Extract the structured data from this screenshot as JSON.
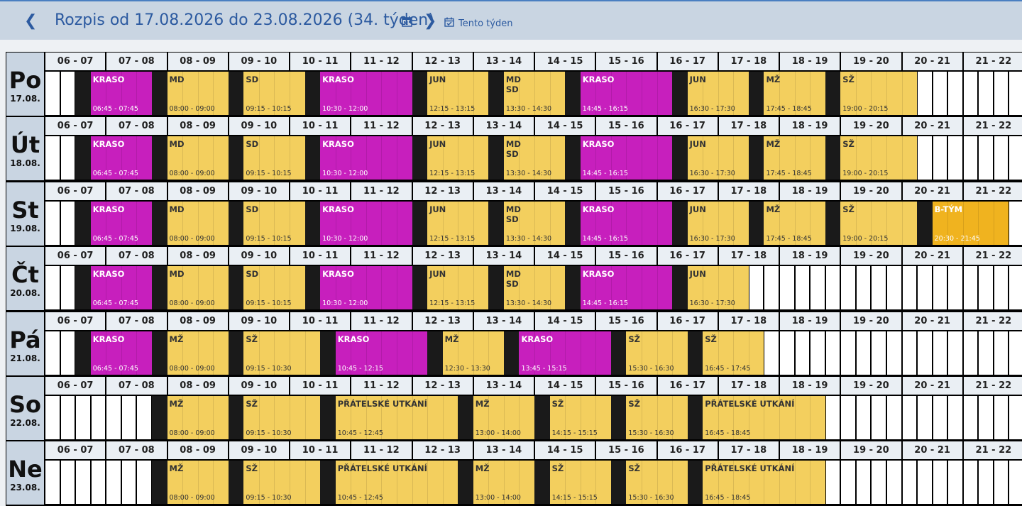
{
  "header": {
    "prev_icon": "chevron-left-icon",
    "title": "Rozpis od 17.08.2026 do 23.08.2026 (34. týden)",
    "calendar_icon": "calendar-icon",
    "next_icon": "chevron-right-icon",
    "this_week_icon": "calendar-check-icon",
    "this_week_label": "Tento týden"
  },
  "colors": {
    "accent": "#2c5aa0",
    "header_bg": "#c9d5e2",
    "kraso": "#c71fbd",
    "normal": "#f3cf5e",
    "btym": "#f0b31f",
    "closed": "#1a1a1a"
  },
  "hours": [
    "06 - 07",
    "07 - 08",
    "08 - 09",
    "09 - 10",
    "10 - 11",
    "11 - 12",
    "12 - 13",
    "13 - 14",
    "14 - 15",
    "15 - 16",
    "16 - 17",
    "17 - 18",
    "18 - 19",
    "19 - 20",
    "20 - 21",
    "21 - 22"
  ],
  "days": [
    {
      "name": "Po",
      "date": "17.08.",
      "blocks": [
        {
          "label": "KRASO",
          "time": "06:45 - 07:45",
          "kind": "kraso"
        },
        {
          "label": "MD",
          "time": "08:00 - 09:00",
          "kind": "norm"
        },
        {
          "label": "SD",
          "time": "09:15 - 10:15",
          "kind": "norm"
        },
        {
          "label": "KRASO",
          "time": "10:30 - 12:00",
          "kind": "kraso"
        },
        {
          "label": "JUN",
          "time": "12:15 - 13:15",
          "kind": "norm"
        },
        {
          "label": "MD\nSD",
          "time": "13:30 - 14:30",
          "kind": "norm"
        },
        {
          "label": "KRASO",
          "time": "14:45 - 16:15",
          "kind": "kraso"
        },
        {
          "label": "JUN",
          "time": "16:30 - 17:30",
          "kind": "norm"
        },
        {
          "label": "MŽ",
          "time": "17:45 - 18:45",
          "kind": "norm"
        },
        {
          "label": "SŽ",
          "time": "19:00 - 20:15",
          "kind": "norm"
        }
      ]
    },
    {
      "name": "Út",
      "date": "18.08.",
      "blocks": [
        {
          "label": "KRASO",
          "time": "06:45 - 07:45",
          "kind": "kraso"
        },
        {
          "label": "MD",
          "time": "08:00 - 09:00",
          "kind": "norm"
        },
        {
          "label": "SD",
          "time": "09:15 - 10:15",
          "kind": "norm"
        },
        {
          "label": "KRASO",
          "time": "10:30 - 12:00",
          "kind": "kraso"
        },
        {
          "label": "JUN",
          "time": "12:15 - 13:15",
          "kind": "norm"
        },
        {
          "label": "MD\nSD",
          "time": "13:30 - 14:30",
          "kind": "norm"
        },
        {
          "label": "KRASO",
          "time": "14:45 - 16:15",
          "kind": "kraso"
        },
        {
          "label": "JUN",
          "time": "16:30 - 17:30",
          "kind": "norm"
        },
        {
          "label": "MŽ",
          "time": "17:45 - 18:45",
          "kind": "norm"
        },
        {
          "label": "SŽ",
          "time": "19:00 - 20:15",
          "kind": "norm"
        }
      ]
    },
    {
      "name": "St",
      "date": "19.08.",
      "blocks": [
        {
          "label": "KRASO",
          "time": "06:45 - 07:45",
          "kind": "kraso"
        },
        {
          "label": "MD",
          "time": "08:00 - 09:00",
          "kind": "norm"
        },
        {
          "label": "SD",
          "time": "09:15 - 10:15",
          "kind": "norm"
        },
        {
          "label": "KRASO",
          "time": "10:30 - 12:00",
          "kind": "kraso"
        },
        {
          "label": "JUN",
          "time": "12:15 - 13:15",
          "kind": "norm"
        },
        {
          "label": "MD\nSD",
          "time": "13:30 - 14:30",
          "kind": "norm"
        },
        {
          "label": "KRASO",
          "time": "14:45 - 16:15",
          "kind": "kraso"
        },
        {
          "label": "JUN",
          "time": "16:30 - 17:30",
          "kind": "norm"
        },
        {
          "label": "MŽ",
          "time": "17:45 - 18:45",
          "kind": "norm"
        },
        {
          "label": "SŽ",
          "time": "19:00 - 20:15",
          "kind": "norm"
        },
        {
          "label": "B-TÝM",
          "time": "20:30 - 21:45",
          "kind": "btym"
        }
      ]
    },
    {
      "name": "Čt",
      "date": "20.08.",
      "blocks": [
        {
          "label": "KRASO",
          "time": "06:45 - 07:45",
          "kind": "kraso"
        },
        {
          "label": "MD",
          "time": "08:00 - 09:00",
          "kind": "norm"
        },
        {
          "label": "SD",
          "time": "09:15 - 10:15",
          "kind": "norm"
        },
        {
          "label": "KRASO",
          "time": "10:30 - 12:00",
          "kind": "kraso"
        },
        {
          "label": "JUN",
          "time": "12:15 - 13:15",
          "kind": "norm"
        },
        {
          "label": "MD\nSD",
          "time": "13:30 - 14:30",
          "kind": "norm"
        },
        {
          "label": "KRASO",
          "time": "14:45 - 16:15",
          "kind": "kraso"
        },
        {
          "label": "JUN",
          "time": "16:30 - 17:30",
          "kind": "norm"
        }
      ]
    },
    {
      "name": "Pá",
      "date": "21.08.",
      "blocks": [
        {
          "label": "KRASO",
          "time": "06:45 - 07:45",
          "kind": "kraso"
        },
        {
          "label": "MŽ",
          "time": "08:00 - 09:00",
          "kind": "norm"
        },
        {
          "label": "SŽ",
          "time": "09:15 - 10:30",
          "kind": "norm"
        },
        {
          "label": "KRASO",
          "time": "10:45 - 12:15",
          "kind": "kraso"
        },
        {
          "label": "MŽ",
          "time": "12:30 - 13:30",
          "kind": "norm"
        },
        {
          "label": "KRASO",
          "time": "13:45 - 15:15",
          "kind": "kraso"
        },
        {
          "label": "SŽ",
          "time": "15:30 - 16:30",
          "kind": "norm"
        },
        {
          "label": "SŽ",
          "time": "16:45 - 17:45",
          "kind": "norm"
        }
      ]
    },
    {
      "name": "So",
      "date": "22.08.",
      "blocks": [
        {
          "label": "MŽ",
          "time": "08:00 - 09:00",
          "kind": "norm"
        },
        {
          "label": "SŽ",
          "time": "09:15 - 10:30",
          "kind": "norm"
        },
        {
          "label": "PŘÁTELSKÉ UTKÁNÍ",
          "time": "10:45 - 12:45",
          "kind": "norm"
        },
        {
          "label": "MŽ",
          "time": "13:00 - 14:00",
          "kind": "norm"
        },
        {
          "label": "SŽ",
          "time": "14:15 - 15:15",
          "kind": "norm"
        },
        {
          "label": "SŽ",
          "time": "15:30 - 16:30",
          "kind": "norm"
        },
        {
          "label": "PŘÁTELSKÉ UTKÁNÍ",
          "time": "16:45 - 18:45",
          "kind": "norm"
        }
      ]
    },
    {
      "name": "Ne",
      "date": "23.08.",
      "blocks": [
        {
          "label": "MŽ",
          "time": "08:00 - 09:00",
          "kind": "norm"
        },
        {
          "label": "SŽ",
          "time": "09:15 - 10:30",
          "kind": "norm"
        },
        {
          "label": "PŘÁTELSKÉ UTKÁNÍ",
          "time": "10:45 - 12:45",
          "kind": "norm"
        },
        {
          "label": "MŽ",
          "time": "13:00 - 14:00",
          "kind": "norm"
        },
        {
          "label": "SŽ",
          "time": "14:15 - 15:15",
          "kind": "norm"
        },
        {
          "label": "SŽ",
          "time": "15:30 - 16:30",
          "kind": "norm"
        },
        {
          "label": "PŘÁTELSKÉ UTKÁNÍ",
          "time": "16:45 - 18:45",
          "kind": "norm"
        }
      ]
    }
  ]
}
